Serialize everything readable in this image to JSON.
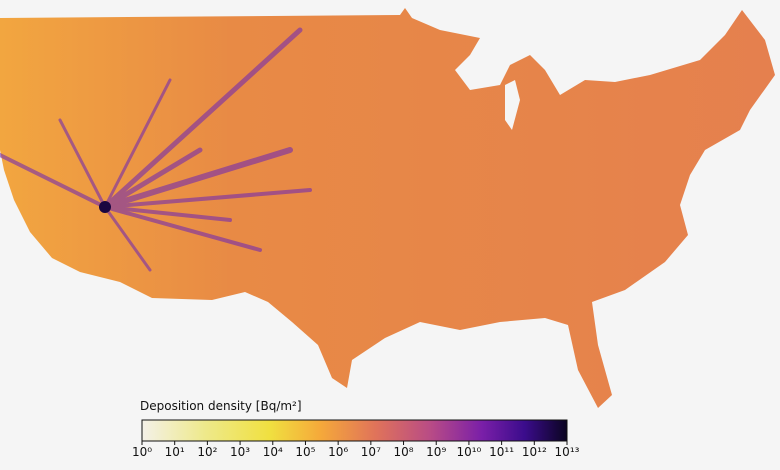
{
  "chart_data": {
    "type": "colorbar",
    "title": "Deposition density [Bq/m²]",
    "xlim": [
      1,
      10000000000000
    ],
    "log_scale": true,
    "xticks": [
      {
        "value": 1,
        "label": "10⁰"
      },
      {
        "value": 10,
        "label": "10¹"
      },
      {
        "value": 100,
        "label": "10²"
      },
      {
        "value": 1000,
        "label": "10³"
      },
      {
        "value": 10000,
        "label": "10⁴"
      },
      {
        "value": 100000,
        "label": "10⁵"
      },
      {
        "value": 1000000,
        "label": "10⁶"
      },
      {
        "value": 10000000,
        "label": "10⁷"
      },
      {
        "value": 100000000,
        "label": "10⁸"
      },
      {
        "value": 1000000000,
        "label": "10⁹"
      },
      {
        "value": 10000000000,
        "label": "10¹⁰"
      },
      {
        "value": 100000000000,
        "label": "10¹¹"
      },
      {
        "value": 1000000000000,
        "label": "10¹²"
      },
      {
        "value": 10000000000000,
        "label": "10¹³"
      }
    ]
  }
}
